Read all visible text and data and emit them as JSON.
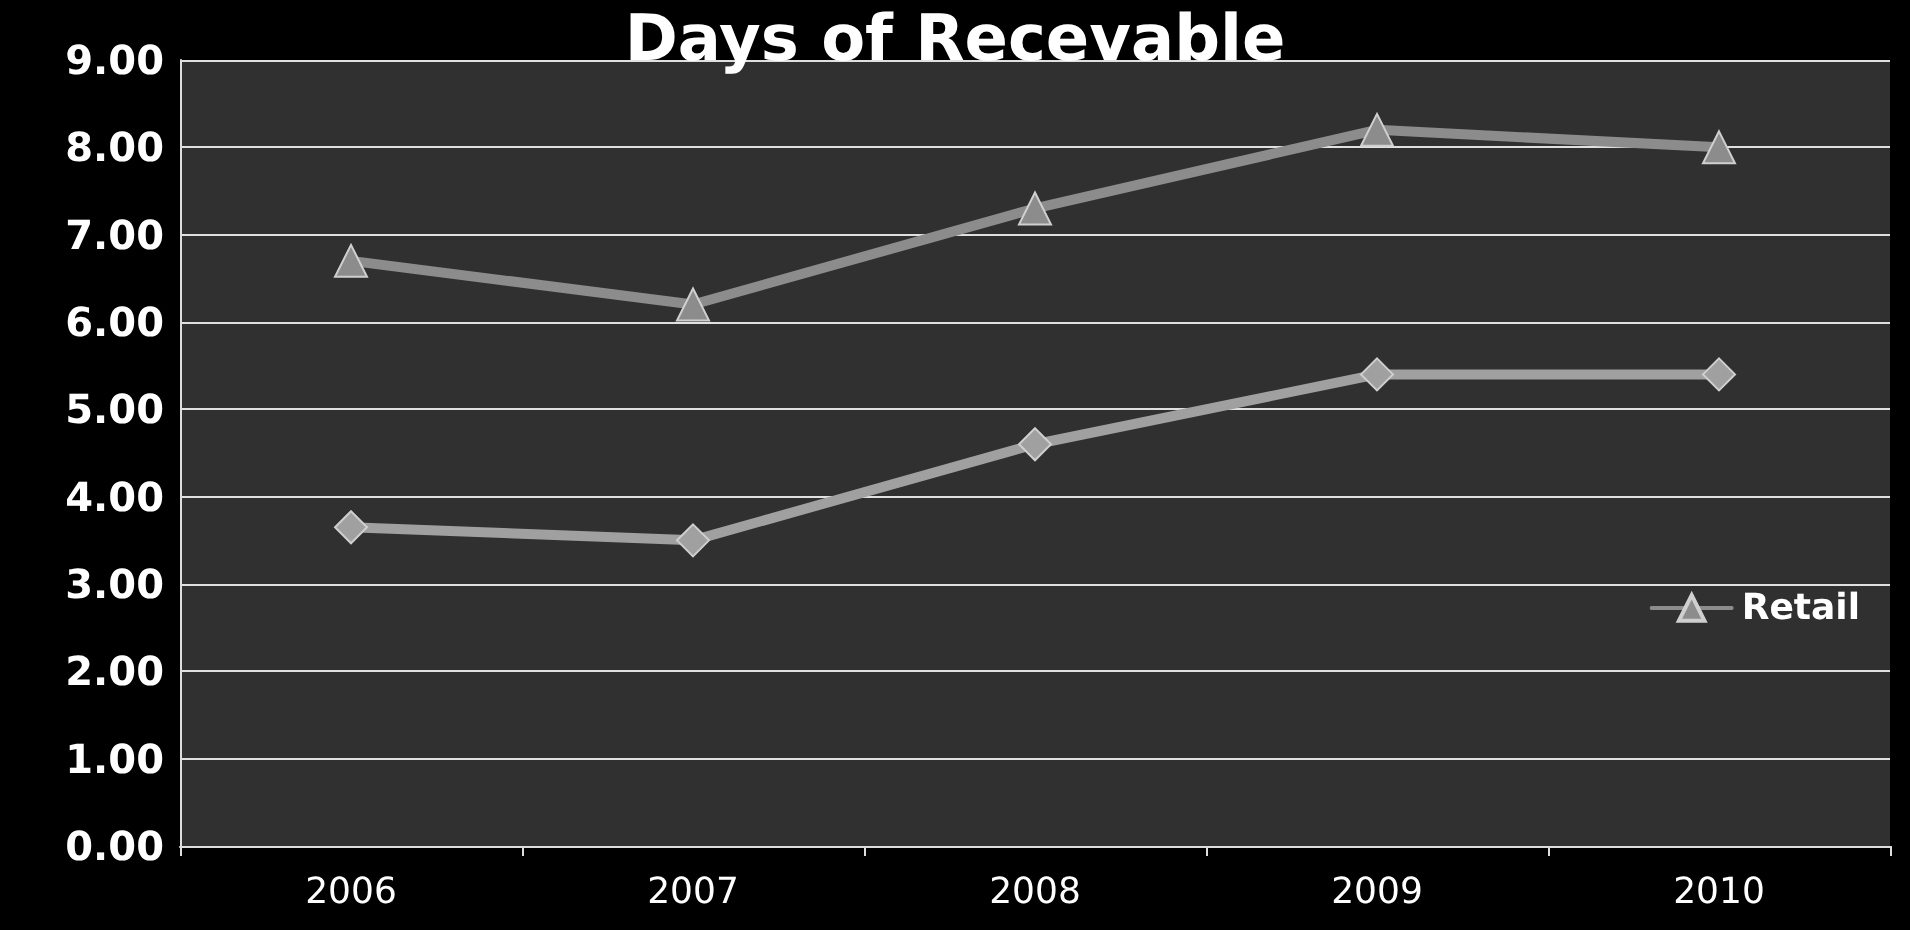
{
  "chart_data": {
    "type": "line",
    "title": "Days of Recevable",
    "categories": [
      "2006",
      "2007",
      "2008",
      "2009",
      "2010"
    ],
    "series": [
      {
        "name": "Retail",
        "color": "#8c8c8c",
        "marker": "triangle",
        "values": [
          6.7,
          6.2,
          7.3,
          8.2,
          8.0
        ]
      },
      {
        "color": "#a0a0a0",
        "marker": "diamond",
        "values": [
          3.65,
          3.5,
          4.6,
          5.4,
          5.4
        ]
      }
    ],
    "ylim": [
      0,
      9
    ],
    "yticks": [
      {
        "value": 0,
        "label": "0.00"
      },
      {
        "value": 1,
        "label": "1.00"
      },
      {
        "value": 2,
        "label": "2.00"
      },
      {
        "value": 3,
        "label": "3.00"
      },
      {
        "value": 4,
        "label": "4.00"
      },
      {
        "value": 5,
        "label": "5.00"
      },
      {
        "value": 6,
        "label": "6.00"
      },
      {
        "value": 7,
        "label": "7.00"
      },
      {
        "value": 8,
        "label": "8.00"
      },
      {
        "value": 9,
        "label": "9.00"
      }
    ],
    "grid": "y",
    "legend": "right"
  }
}
